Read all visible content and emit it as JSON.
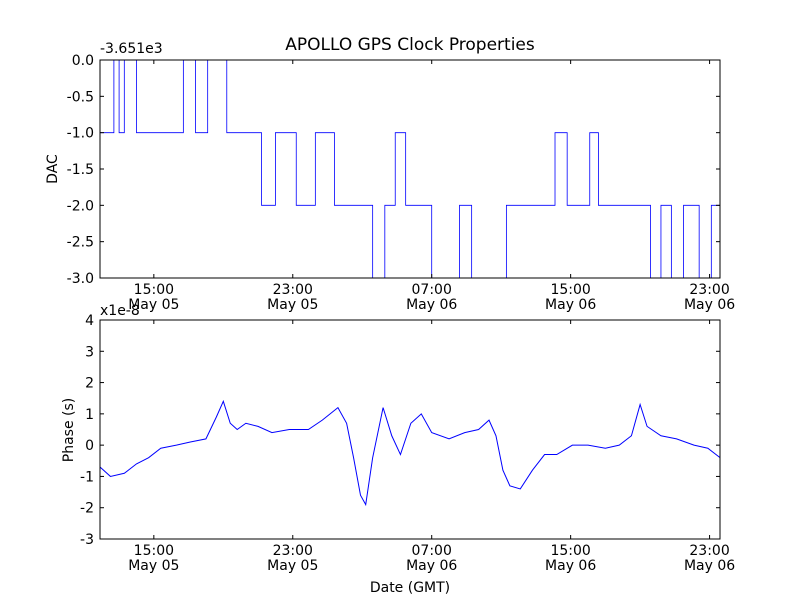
{
  "chart_data": {
    "type": "line",
    "title": "APOLLO GPS Clock Properties",
    "xlabel": "Date (GMT)",
    "x_tick_labels": [
      {
        "time": "15:00",
        "date": "May 05"
      },
      {
        "time": "23:00",
        "date": "May 05"
      },
      {
        "time": "07:00",
        "date": "May 06"
      },
      {
        "time": "15:00",
        "date": "May 06"
      },
      {
        "time": "23:00",
        "date": "May 06"
      }
    ],
    "x_ticks_hours": [
      15,
      23,
      31,
      39,
      47
    ],
    "xlim_hours": [
      11.9,
      47.6
    ],
    "line_color": "#0000ff",
    "panels": [
      {
        "ylabel": "DAC",
        "offset_text": "-3.651e3",
        "ylim": [
          -3.0,
          0.0
        ],
        "y_ticks": [
          0.0,
          -0.5,
          -1.0,
          -1.5,
          -2.0,
          -2.5,
          -3.0
        ],
        "y_tick_labels": [
          "0.0",
          "-0.5",
          "-1.0",
          "-1.5",
          "-2.0",
          "-2.5",
          "-3.0"
        ],
        "series": [
          {
            "x": [
              11.9,
              12.7,
              13.0,
              13.3,
              14.0,
              15.1,
              16.2,
              16.7,
              17.4,
              18.1,
              19.2,
              20.3,
              21.2,
              22.0,
              23.2,
              24.3,
              25.4,
              26.0,
              26.8,
              27.6,
              28.3,
              28.9,
              29.5,
              30.1,
              31.0,
              32.0,
              32.6,
              33.3,
              34.0,
              34.5,
              35.3,
              36.5,
              37.6,
              38.1,
              38.8,
              39.4,
              40.1,
              40.6,
              41.7,
              42.8,
              43.6,
              44.2,
              44.8,
              45.5,
              46.4,
              47.1,
              47.6
            ],
            "y": [
              -1,
              0,
              -1,
              0,
              -1,
              -1,
              -1,
              0,
              -1,
              0,
              -1,
              -1,
              -2,
              -1,
              -2,
              -1,
              -2,
              -2,
              -2,
              -3,
              -2,
              -1,
              -2,
              -2,
              -3,
              -3,
              -2,
              -3,
              -3,
              -3,
              -2,
              -2,
              -2,
              -1,
              -2,
              -2,
              -1,
              -2,
              -2,
              -2,
              -3,
              -2,
              -3,
              -2,
              -3,
              -2,
              -2
            ]
          }
        ]
      },
      {
        "ylabel": "Phase (s)",
        "offset_text": "x1e-8",
        "ylim": [
          -3,
          4
        ],
        "y_ticks": [
          4,
          3,
          2,
          1,
          0,
          -1,
          -2,
          -3
        ],
        "y_tick_labels": [
          "4",
          "3",
          "2",
          "1",
          "0",
          "-1",
          "-2",
          "-3"
        ],
        "series": [
          {
            "x": [
              11.9,
              12.5,
              13.3,
              14.0,
              14.7,
              15.4,
              16.3,
              17.1,
              18.0,
              18.6,
              19.0,
              19.4,
              19.8,
              20.3,
              21.0,
              21.8,
              22.8,
              23.9,
              24.7,
              25.6,
              26.1,
              26.5,
              26.9,
              27.2,
              27.6,
              28.2,
              28.7,
              29.2,
              29.8,
              30.4,
              31.0,
              32.0,
              32.9,
              33.7,
              34.3,
              34.7,
              35.1,
              35.5,
              36.1,
              36.8,
              37.5,
              38.2,
              39.1,
              40.0,
              41.0,
              41.8,
              42.5,
              43.0,
              43.4,
              44.2,
              45.1,
              46.1,
              46.9,
              47.6
            ],
            "y": [
              -0.7,
              -1.0,
              -0.9,
              -0.6,
              -0.4,
              -0.1,
              0.0,
              0.1,
              0.2,
              0.9,
              1.4,
              0.7,
              0.5,
              0.7,
              0.6,
              0.4,
              0.5,
              0.5,
              0.8,
              1.2,
              0.7,
              -0.4,
              -1.6,
              -1.9,
              -0.4,
              1.2,
              0.3,
              -0.3,
              0.7,
              1.0,
              0.4,
              0.2,
              0.4,
              0.5,
              0.8,
              0.3,
              -0.8,
              -1.3,
              -1.4,
              -0.8,
              -0.3,
              -0.3,
              0.0,
              0.0,
              -0.1,
              0.0,
              0.3,
              1.3,
              0.6,
              0.3,
              0.2,
              0.0,
              -0.1,
              -0.4
            ]
          }
        ]
      }
    ]
  }
}
